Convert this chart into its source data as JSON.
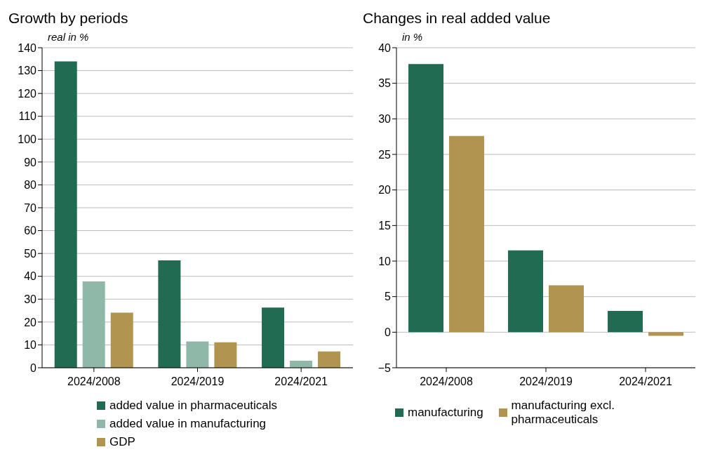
{
  "chart_data": [
    {
      "type": "bar",
      "title": "Growth by periods",
      "ylabel": "real in %",
      "categories": [
        "2024/2008",
        "2024/2019",
        "2024/2021"
      ],
      "series": [
        {
          "name": "added value in pharmaceuticals",
          "color": "#206b52",
          "values": [
            134,
            47,
            26.3
          ]
        },
        {
          "name": "added value in manufacturing",
          "color": "#8fb8a8",
          "values": [
            37.8,
            11.5,
            3.1
          ]
        },
        {
          "name": "GDP",
          "color": "#b0944f",
          "values": [
            24.1,
            11.1,
            7.1
          ]
        }
      ],
      "ylim": [
        0,
        140
      ],
      "yticks": [
        0,
        10,
        20,
        30,
        40,
        50,
        60,
        70,
        80,
        90,
        100,
        110,
        120,
        130,
        140
      ],
      "grid": "y",
      "legend": "bottom"
    },
    {
      "type": "bar",
      "title": "Changes in real added value",
      "ylabel": "in %",
      "categories": [
        "2024/2008",
        "2024/2019",
        "2024/2021"
      ],
      "series": [
        {
          "name": "manufacturing",
          "color": "#206b52",
          "values": [
            37.7,
            11.5,
            3.0
          ]
        },
        {
          "name": "manufacturing excl. pharmaceuticals",
          "color": "#b0944f",
          "values": [
            27.6,
            6.6,
            -0.5
          ]
        }
      ],
      "ylim": [
        -5,
        40
      ],
      "yticks": [
        {
          "value": -5,
          "label": "−5"
        },
        0,
        5,
        10,
        15,
        20,
        25,
        30,
        35,
        40
      ],
      "grid": "y",
      "legend": "bottom"
    }
  ]
}
